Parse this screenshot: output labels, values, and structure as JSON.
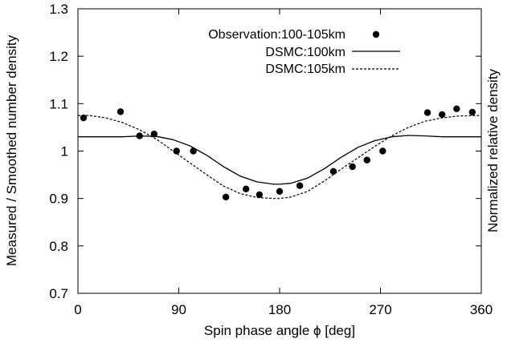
{
  "chart_data": {
    "type": "scatter",
    "xlabel": "Spin phase angle  ϕ  [deg]",
    "ylabel_left": "Measured / Smoothed number density",
    "ylabel_right": "Normalized relative density",
    "xlim": [
      0,
      360
    ],
    "ylim": [
      0.7,
      1.3
    ],
    "xticks": [
      0,
      90,
      180,
      270,
      360
    ],
    "yticks": [
      0.7,
      0.8,
      0.9,
      1,
      1.1,
      1.2,
      1.3
    ],
    "ytick_labels": [
      "0.7",
      "0.8",
      "0.9",
      "1",
      "1.1",
      "1.2",
      "1.3"
    ],
    "grid": false,
    "legend_position": "top-right",
    "series": [
      {
        "name": "Observation:100-105km",
        "style": "points",
        "color": "#000000",
        "x": [
          5,
          38,
          55,
          68,
          88,
          103,
          132,
          150,
          162,
          180,
          198,
          228,
          245,
          258,
          272,
          312,
          325,
          338,
          352
        ],
        "y": [
          1.07,
          1.083,
          1.032,
          1.036,
          1.0,
          1.0,
          0.903,
          0.92,
          0.908,
          0.915,
          0.927,
          0.957,
          0.967,
          0.981,
          1.0,
          1.081,
          1.077,
          1.089,
          1.082
        ]
      },
      {
        "name": "DSMC:100km",
        "style": "solid",
        "color": "#000000",
        "x": [
          0,
          20,
          40,
          55,
          70,
          85,
          100,
          115,
          130,
          145,
          160,
          175,
          180,
          190,
          205,
          220,
          235,
          250,
          265,
          280,
          295,
          310,
          325,
          340,
          360
        ],
        "y": [
          1.03,
          1.03,
          1.03,
          1.032,
          1.031,
          1.024,
          1.011,
          0.991,
          0.967,
          0.947,
          0.935,
          0.93,
          0.93,
          0.932,
          0.943,
          0.963,
          0.987,
          1.008,
          1.022,
          1.03,
          1.033,
          1.032,
          1.03,
          1.03,
          1.03
        ]
      },
      {
        "name": "DSMC:105km",
        "style": "dashed",
        "color": "#000000",
        "x": [
          0,
          10,
          25,
          40,
          55,
          70,
          85,
          100,
          115,
          130,
          145,
          160,
          175,
          180,
          190,
          205,
          220,
          235,
          250,
          265,
          280,
          295,
          310,
          325,
          340,
          360
        ],
        "y": [
          1.075,
          1.075,
          1.07,
          1.06,
          1.045,
          1.025,
          1.0,
          0.975,
          0.95,
          0.926,
          0.91,
          0.902,
          0.9,
          0.9,
          0.903,
          0.915,
          0.937,
          0.962,
          0.986,
          1.01,
          1.032,
          1.05,
          1.063,
          1.07,
          1.074,
          1.075
        ]
      }
    ]
  }
}
